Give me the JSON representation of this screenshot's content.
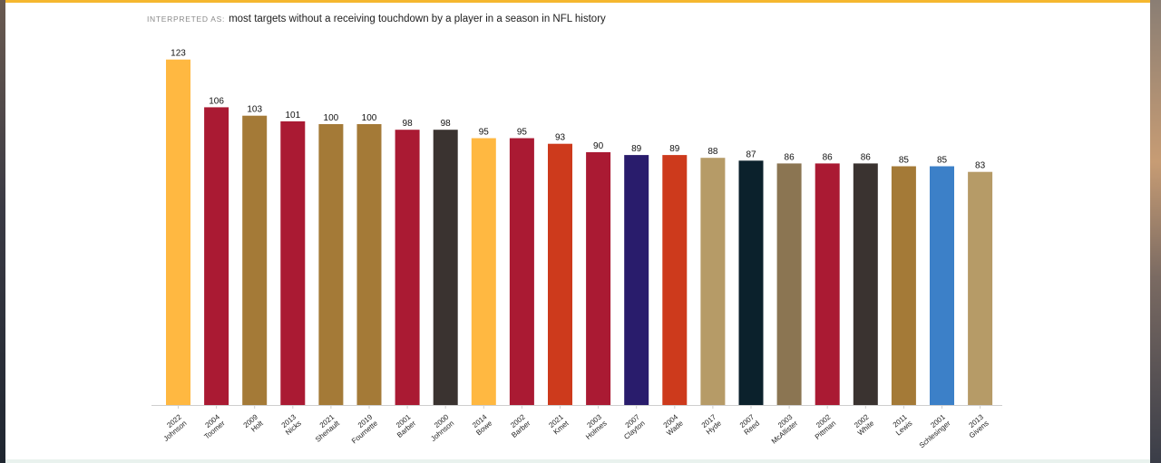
{
  "header": {
    "label": "INTERPRETED AS:",
    "query": "most targets without a receiving touchdown by a player in a season in NFL history"
  },
  "chart_data": {
    "type": "bar",
    "ylim": [
      0,
      125
    ],
    "grid": false,
    "categories": [
      {
        "year": "2022",
        "name": "Johnson"
      },
      {
        "year": "2004",
        "name": "Toomer"
      },
      {
        "year": "2009",
        "name": "Holt"
      },
      {
        "year": "2013",
        "name": "Nicks"
      },
      {
        "year": "2021",
        "name": "Shenault"
      },
      {
        "year": "2019",
        "name": "Fournette"
      },
      {
        "year": "2001",
        "name": "Barber"
      },
      {
        "year": "2000",
        "name": "Johnson"
      },
      {
        "year": "2014",
        "name": "Bowe"
      },
      {
        "year": "2002",
        "name": "Barber"
      },
      {
        "year": "2021",
        "name": "Kmet"
      },
      {
        "year": "2003",
        "name": "Holmes"
      },
      {
        "year": "2007",
        "name": "Clayton"
      },
      {
        "year": "2004",
        "name": "Wade"
      },
      {
        "year": "2017",
        "name": "Hyde"
      },
      {
        "year": "2007",
        "name": "Reed"
      },
      {
        "year": "2003",
        "name": "McAllister"
      },
      {
        "year": "2002",
        "name": "Pittman"
      },
      {
        "year": "2002",
        "name": "White"
      },
      {
        "year": "2011",
        "name": "Lewis"
      },
      {
        "year": "2001",
        "name": "Schlesinger"
      },
      {
        "year": "2013",
        "name": "Givens"
      }
    ],
    "values": [
      123,
      106,
      103,
      101,
      100,
      100,
      98,
      98,
      95,
      95,
      93,
      90,
      89,
      89,
      88,
      87,
      86,
      86,
      86,
      85,
      85,
      83
    ],
    "colors": [
      "#FFB841",
      "#AA1A33",
      "#A47A37",
      "#AA1A33",
      "#A47A37",
      "#A47A37",
      "#AA1A33",
      "#3A3330",
      "#FFB841",
      "#AA1A33",
      "#CD3A1C",
      "#AA1A33",
      "#291C6C",
      "#CD3A1C",
      "#B69B67",
      "#0B212C",
      "#8B7552",
      "#AA1A33",
      "#3A3330",
      "#A47A37",
      "#3C80C8",
      "#B69B67"
    ]
  }
}
